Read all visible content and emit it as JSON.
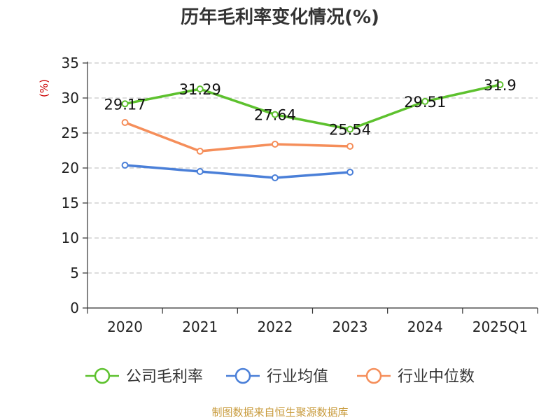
{
  "source_note": "制图数据来自恒生聚源数据库",
  "chart_data": {
    "type": "line",
    "title": "历年毛利率变化情况(%)",
    "ylabel": "(%)",
    "xlabel": "",
    "categories": [
      "2020",
      "2021",
      "2022",
      "2023",
      "2024",
      "2025Q1"
    ],
    "ylim": [
      0,
      35
    ],
    "yticks": [
      0,
      5,
      10,
      15,
      20,
      25,
      30,
      35
    ],
    "grid": true,
    "legend_position": "bottom",
    "series": [
      {
        "name": "公司毛利率",
        "color": "#5dc12e",
        "values": [
          29.17,
          31.29,
          27.64,
          25.54,
          29.51,
          31.9
        ],
        "labels": [
          "29.17",
          "31.29",
          "27.64",
          "25.54",
          "29.51",
          "31.9"
        ]
      },
      {
        "name": "行业均值",
        "color": "#4a7fd8",
        "values": [
          20.4,
          19.5,
          18.6,
          19.4,
          null,
          null
        ]
      },
      {
        "name": "行业中位数",
        "color": "#f58e5a",
        "values": [
          26.5,
          22.4,
          23.4,
          23.1,
          null,
          null
        ]
      }
    ]
  }
}
